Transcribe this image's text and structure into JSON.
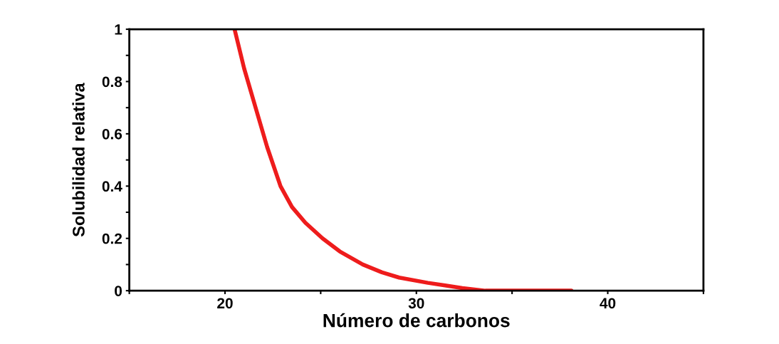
{
  "chart_data": {
    "type": "line",
    "xlabel": "Número de carbonos",
    "ylabel": "Solubilidad relativa",
    "series": [
      {
        "color": "#ee1c1c",
        "x": [
          20.5,
          21.0,
          21.6,
          22.2,
          22.9,
          23.5,
          24.2,
          25.1,
          26.0,
          27.2,
          28.2,
          29.1,
          30.6,
          31.5,
          32.4,
          33.6,
          35.0,
          36.5,
          38.1
        ],
        "values": [
          1.0,
          0.85,
          0.7,
          0.55,
          0.4,
          0.32,
          0.26,
          0.2,
          0.15,
          0.1,
          0.07,
          0.05,
          0.03,
          0.02,
          0.01,
          0.0,
          0.0,
          0.0,
          0.0
        ]
      }
    ],
    "xlim": [
      15,
      45
    ],
    "ylim": [
      0,
      1
    ],
    "xticks": [
      {
        "value": 15,
        "label": null
      },
      20,
      {
        "value": 25,
        "label": null
      },
      30,
      {
        "value": 35,
        "label": null
      },
      40,
      {
        "value": 45,
        "label": null
      }
    ],
    "yticks": [
      0,
      {
        "value": 0.1,
        "label": null
      },
      0.2,
      {
        "value": 0.3,
        "label": null
      },
      0.4,
      {
        "value": 0.5,
        "label": null
      },
      0.6,
      {
        "value": 0.7,
        "label": null
      },
      0.8,
      {
        "value": 0.9,
        "label": null
      },
      1
    ],
    "grid": false,
    "legend": false,
    "marker": "none",
    "line_style": "solid"
  }
}
